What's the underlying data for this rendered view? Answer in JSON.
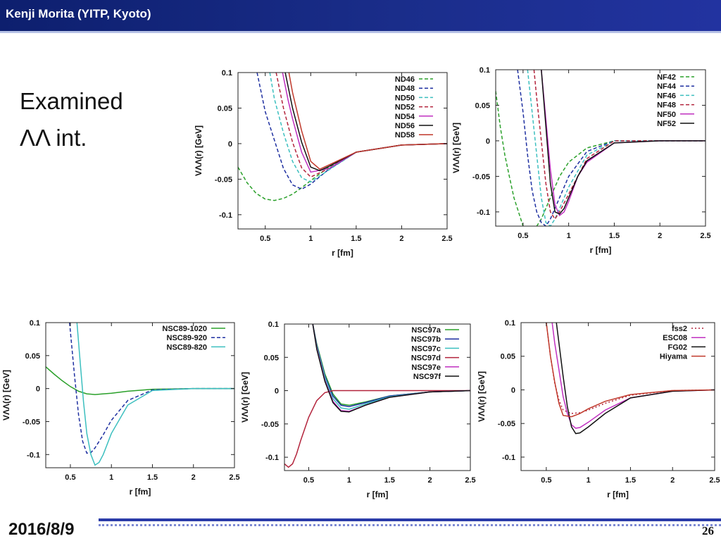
{
  "header": {
    "title": "Kenji Morita (YITP, Kyoto)"
  },
  "slide": {
    "heading_line1": "Examined",
    "heading_line2": "ΛΛ int."
  },
  "footer": {
    "date": "2016/8/9",
    "page": "26"
  },
  "chart_data": [
    {
      "type": "line",
      "xlabel": "r [fm]",
      "ylabel": "VΛΛ(r) [GeV]",
      "xlim": [
        0.2,
        2.5
      ],
      "ylim": [
        -0.12,
        0.1
      ],
      "xticks": [
        0.5,
        1,
        1.5,
        2,
        2.5
      ],
      "xtick_labels": [
        "0.5",
        "1",
        "1.5",
        "2",
        "2.5"
      ],
      "yticks": [
        0.1,
        0.05,
        0,
        -0.05,
        -0.1
      ],
      "ytick_labels": [
        "0.1",
        "0.05",
        "0",
        "-0.05",
        "-0.1"
      ],
      "legend": "top-right",
      "series": [
        {
          "name": "ND46",
          "color": "#2aa02a",
          "dash": "dash",
          "x": [
            0.2,
            0.3,
            0.4,
            0.5,
            0.6,
            0.7,
            0.8,
            0.9,
            1.0,
            1.2,
            1.5,
            2.0,
            2.5
          ],
          "y": [
            -0.033,
            -0.055,
            -0.07,
            -0.078,
            -0.08,
            -0.077,
            -0.071,
            -0.062,
            -0.052,
            -0.033,
            -0.012,
            -0.002,
            0
          ]
        },
        {
          "name": "ND48",
          "color": "#1e2fa0",
          "dash": "dash",
          "x": [
            0.41,
            0.5,
            0.6,
            0.7,
            0.8,
            0.9,
            1.0,
            1.2,
            1.5,
            2.0,
            2.5
          ],
          "y": [
            0.1,
            0.045,
            0.005,
            -0.035,
            -0.058,
            -0.064,
            -0.057,
            -0.036,
            -0.012,
            -0.002,
            0
          ]
        },
        {
          "name": "ND50",
          "color": "#3cbfbf",
          "dash": "dash",
          "x": [
            0.55,
            0.6,
            0.7,
            0.8,
            0.9,
            1.0,
            1.2,
            1.5,
            2.0,
            2.5
          ],
          "y": [
            0.1,
            0.063,
            0.015,
            -0.025,
            -0.048,
            -0.054,
            -0.037,
            -0.012,
            -0.002,
            0
          ]
        },
        {
          "name": "ND52",
          "color": "#b3243c",
          "dash": "dash",
          "x": [
            0.62,
            0.7,
            0.8,
            0.9,
            1.0,
            1.2,
            1.5,
            2.0,
            2.5
          ],
          "y": [
            0.1,
            0.05,
            0.002,
            -0.034,
            -0.047,
            -0.035,
            -0.012,
            -0.002,
            0
          ]
        },
        {
          "name": "ND54",
          "color": "#c030c0",
          "dash": "solid",
          "x": [
            0.69,
            0.75,
            0.8,
            0.9,
            1.0,
            1.2,
            1.5,
            2.0,
            2.5
          ],
          "y": [
            0.1,
            0.062,
            0.035,
            -0.012,
            -0.04,
            -0.035,
            -0.012,
            -0.002,
            0
          ]
        },
        {
          "name": "ND56",
          "color": "#111111",
          "dash": "solid",
          "x": [
            0.72,
            0.8,
            0.9,
            1.0,
            1.1,
            1.2,
            1.5,
            2.0,
            2.5
          ],
          "y": [
            0.1,
            0.05,
            0.002,
            -0.033,
            -0.038,
            -0.032,
            -0.012,
            -0.002,
            0
          ]
        },
        {
          "name": "ND58",
          "color": "#c0392b",
          "dash": "solid",
          "x": [
            0.76,
            0.8,
            0.9,
            1.0,
            1.1,
            1.2,
            1.5,
            2.0,
            2.5
          ],
          "y": [
            0.1,
            0.072,
            0.018,
            -0.025,
            -0.036,
            -0.03,
            -0.012,
            -0.002,
            0
          ]
        }
      ]
    },
    {
      "type": "line",
      "xlabel": "r [fm]",
      "ylabel": "VΛΛ(r) [GeV]",
      "xlim": [
        0.2,
        2.5
      ],
      "ylim": [
        -0.12,
        0.1
      ],
      "xticks": [
        0.5,
        1,
        1.5,
        2,
        2.5
      ],
      "xtick_labels": [
        "0.5",
        "1",
        "1.5",
        "2",
        "2.5"
      ],
      "yticks": [
        0.1,
        0.05,
        0,
        -0.05,
        -0.1
      ],
      "ytick_labels": [
        "0.1",
        "0.05",
        "0",
        "-0.05",
        "-0.1"
      ],
      "legend": "top-right",
      "series": [
        {
          "name": "NF42",
          "color": "#2aa02a",
          "dash": "dash",
          "x": [
            0.2,
            0.25,
            0.3,
            0.35,
            0.4,
            0.45,
            0.5,
            0.6,
            0.7,
            0.8,
            0.9,
            1.0,
            1.2,
            1.5,
            2.0,
            2.5
          ],
          "y": [
            0.07,
            0.02,
            -0.02,
            -0.05,
            -0.08,
            -0.1,
            -0.12,
            -0.13,
            -0.11,
            -0.08,
            -0.05,
            -0.03,
            -0.01,
            0,
            0,
            0
          ]
        },
        {
          "name": "NF44",
          "color": "#1e2fa0",
          "dash": "dash",
          "x": [
            0.44,
            0.5,
            0.55,
            0.6,
            0.65,
            0.7,
            0.75,
            0.8,
            0.9,
            1.0,
            1.2,
            1.5,
            2.0,
            2.5
          ],
          "y": [
            0.1,
            0.04,
            -0.02,
            -0.07,
            -0.1,
            -0.115,
            -0.12,
            -0.11,
            -0.08,
            -0.05,
            -0.015,
            0,
            0,
            0
          ]
        },
        {
          "name": "NF46",
          "color": "#3cbfbf",
          "dash": "dash",
          "x": [
            0.55,
            0.6,
            0.65,
            0.7,
            0.75,
            0.8,
            0.85,
            0.9,
            1.0,
            1.2,
            1.5,
            2.0,
            2.5
          ],
          "y": [
            0.1,
            0.04,
            -0.02,
            -0.08,
            -0.115,
            -0.12,
            -0.11,
            -0.095,
            -0.065,
            -0.02,
            0,
            0,
            0
          ]
        },
        {
          "name": "NF48",
          "color": "#b3243c",
          "dash": "dash",
          "x": [
            0.62,
            0.65,
            0.7,
            0.75,
            0.8,
            0.85,
            0.9,
            1.0,
            1.2,
            1.5,
            2.0,
            2.5
          ],
          "y": [
            0.1,
            0.06,
            0.0,
            -0.06,
            -0.1,
            -0.11,
            -0.1,
            -0.075,
            -0.025,
            0,
            0,
            0
          ]
        },
        {
          "name": "NF50",
          "color": "#c030c0",
          "dash": "solid",
          "x": [
            0.7,
            0.75,
            0.8,
            0.85,
            0.9,
            0.95,
            1.0,
            1.1,
            1.2,
            1.5,
            2.0,
            2.5
          ],
          "y": [
            0.1,
            0.03,
            -0.04,
            -0.09,
            -0.105,
            -0.1,
            -0.085,
            -0.05,
            -0.03,
            -0.003,
            0,
            0
          ]
        },
        {
          "name": "NF52",
          "color": "#111111",
          "dash": "solid",
          "x": [
            0.7,
            0.75,
            0.8,
            0.85,
            0.9,
            0.95,
            1.0,
            1.1,
            1.2,
            1.5,
            2.0,
            2.5
          ],
          "y": [
            0.1,
            0.02,
            -0.06,
            -0.1,
            -0.103,
            -0.095,
            -0.08,
            -0.05,
            -0.028,
            -0.003,
            0,
            0
          ]
        }
      ]
    },
    {
      "type": "line",
      "xlabel": "r [fm]",
      "ylabel": "VΛΛ(r) [GeV]",
      "xlim": [
        0.2,
        2.5
      ],
      "ylim": [
        -0.12,
        0.1
      ],
      "xticks": [
        0.5,
        1,
        1.5,
        2,
        2.5
      ],
      "xtick_labels": [
        "0.5",
        "1",
        "1.5",
        "2",
        "2.5"
      ],
      "yticks": [
        0.1,
        0.05,
        0,
        -0.05,
        -0.1
      ],
      "ytick_labels": [
        "0.1",
        "0.05",
        "0",
        "-0.05",
        "-0.1"
      ],
      "legend": "top-right",
      "series": [
        {
          "name": "NSC89-1020",
          "color": "#2aa02a",
          "dash": "solid",
          "x": [
            0.2,
            0.3,
            0.4,
            0.5,
            0.6,
            0.7,
            0.8,
            0.9,
            1.0,
            1.2,
            1.5,
            2.0,
            2.5
          ],
          "y": [
            0.033,
            0.022,
            0.012,
            0.003,
            -0.004,
            -0.008,
            -0.009,
            -0.008,
            -0.007,
            -0.004,
            -0.001,
            0,
            0
          ]
        },
        {
          "name": "NSC89-920",
          "color": "#1e2fa0",
          "dash": "dash",
          "x": [
            0.49,
            0.55,
            0.6,
            0.65,
            0.7,
            0.75,
            0.8,
            0.9,
            1.0,
            1.2,
            1.5,
            2.0,
            2.5
          ],
          "y": [
            0.1,
            0.02,
            -0.04,
            -0.08,
            -0.098,
            -0.097,
            -0.09,
            -0.07,
            -0.048,
            -0.018,
            -0.002,
            0,
            0
          ]
        },
        {
          "name": "NSC89-820",
          "color": "#3cbfbf",
          "dash": "solid",
          "x": [
            0.58,
            0.62,
            0.66,
            0.7,
            0.75,
            0.8,
            0.85,
            0.9,
            1.0,
            1.2,
            1.5,
            2.0,
            2.5
          ],
          "y": [
            0.1,
            0.04,
            -0.02,
            -0.068,
            -0.1,
            -0.116,
            -0.112,
            -0.1,
            -0.068,
            -0.025,
            -0.003,
            0,
            0
          ]
        }
      ]
    },
    {
      "type": "line",
      "xlabel": "r [fm]",
      "ylabel": "VΛΛ(r) [GeV]",
      "xlim": [
        0.2,
        2.5
      ],
      "ylim": [
        -0.12,
        0.1
      ],
      "xticks": [
        0.5,
        1,
        1.5,
        2,
        2.5
      ],
      "xtick_labels": [
        "0.5",
        "1",
        "1.5",
        "2",
        "2.5"
      ],
      "yticks": [
        0.1,
        0.05,
        0,
        -0.05,
        -0.1
      ],
      "ytick_labels": [
        "0.1",
        "0.05",
        "0",
        "-0.05",
        "-0.1"
      ],
      "legend": "top-right",
      "series": [
        {
          "name": "NSC97a",
          "color": "#2aa02a",
          "dash": "solid",
          "x": [
            0.55,
            0.6,
            0.7,
            0.8,
            0.9,
            1.0,
            1.2,
            1.5,
            2.0,
            2.5
          ],
          "y": [
            0.1,
            0.07,
            0.025,
            -0.005,
            -0.02,
            -0.022,
            -0.017,
            -0.008,
            -0.002,
            0
          ]
        },
        {
          "name": "NSC97b",
          "color": "#1e2fa0",
          "dash": "solid",
          "x": [
            0.55,
            0.6,
            0.7,
            0.8,
            0.9,
            1.0,
            1.2,
            1.5,
            2.0,
            2.5
          ],
          "y": [
            0.1,
            0.068,
            0.022,
            -0.008,
            -0.022,
            -0.024,
            -0.018,
            -0.008,
            -0.002,
            0
          ]
        },
        {
          "name": "NSC97c",
          "color": "#3cbfbf",
          "dash": "solid",
          "x": [
            0.55,
            0.6,
            0.7,
            0.8,
            0.9,
            1.0,
            1.2,
            1.5,
            2.0,
            2.5
          ],
          "y": [
            0.1,
            0.066,
            0.02,
            -0.012,
            -0.026,
            -0.028,
            -0.02,
            -0.009,
            -0.002,
            0
          ]
        },
        {
          "name": "NSC97d",
          "color": "#b3243c",
          "dash": "solid",
          "x": [
            0.2,
            0.25,
            0.3,
            0.35,
            0.4,
            0.5,
            0.6,
            0.7,
            0.8,
            1.0,
            1.5,
            2.5
          ],
          "y": [
            -0.11,
            -0.115,
            -0.11,
            -0.095,
            -0.075,
            -0.04,
            -0.015,
            -0.003,
            0.0,
            0,
            0,
            0
          ]
        },
        {
          "name": "NSC97e",
          "color": "#c030c0",
          "dash": "solid",
          "x": [
            0.55,
            0.6,
            0.7,
            0.8,
            0.9,
            1.0,
            1.2,
            1.5,
            2.0,
            2.5
          ],
          "y": [
            0.1,
            0.064,
            0.016,
            -0.016,
            -0.03,
            -0.031,
            -0.022,
            -0.01,
            -0.002,
            0
          ]
        },
        {
          "name": "NSC97f",
          "color": "#111111",
          "dash": "solid",
          "x": [
            0.55,
            0.6,
            0.7,
            0.8,
            0.9,
            1.0,
            1.2,
            1.5,
            2.0,
            2.5
          ],
          "y": [
            0.1,
            0.062,
            0.014,
            -0.018,
            -0.031,
            -0.032,
            -0.022,
            -0.01,
            -0.002,
            0
          ]
        }
      ]
    },
    {
      "type": "line",
      "xlabel": "r [fm]",
      "ylabel": "VΛΛ(r) [GeV]",
      "xlim": [
        0.2,
        2.5
      ],
      "ylim": [
        -0.12,
        0.1
      ],
      "xticks": [
        0.5,
        1,
        1.5,
        2,
        2.5
      ],
      "xtick_labels": [
        "0.5",
        "1",
        "1.5",
        "2",
        "2.5"
      ],
      "yticks": [
        0.1,
        0.05,
        0,
        -0.05,
        -0.1
      ],
      "ytick_labels": [
        "0.1",
        "0.05",
        "0",
        "-0.05",
        "-0.1"
      ],
      "legend": "top-right",
      "series": [
        {
          "name": "fss2",
          "color": "#b3243c",
          "dash": "dot",
          "x": [
            0.5,
            0.55,
            0.6,
            0.65,
            0.7,
            0.8,
            0.9,
            1.0,
            1.2,
            1.5,
            2.0,
            2.5
          ],
          "y": [
            0.1,
            0.05,
            0.01,
            -0.015,
            -0.03,
            -0.035,
            -0.034,
            -0.03,
            -0.02,
            -0.008,
            -0.001,
            0
          ]
        },
        {
          "name": "ESC08",
          "color": "#c030c0",
          "dash": "solid",
          "x": [
            0.57,
            0.6,
            0.65,
            0.7,
            0.75,
            0.8,
            0.85,
            0.9,
            1.0,
            1.2,
            1.5,
            2.0,
            2.5
          ],
          "y": [
            0.1,
            0.07,
            0.03,
            -0.01,
            -0.035,
            -0.052,
            -0.057,
            -0.056,
            -0.048,
            -0.03,
            -0.012,
            -0.002,
            0
          ]
        },
        {
          "name": "FG02",
          "color": "#111111",
          "dash": "solid",
          "x": [
            0.62,
            0.65,
            0.7,
            0.75,
            0.8,
            0.85,
            0.9,
            1.0,
            1.2,
            1.5,
            2.0,
            2.5
          ],
          "y": [
            0.1,
            0.07,
            0.02,
            -0.025,
            -0.055,
            -0.065,
            -0.064,
            -0.055,
            -0.035,
            -0.012,
            -0.002,
            0
          ]
        },
        {
          "name": "Hiyama",
          "color": "#c0392b",
          "dash": "solid",
          "x": [
            0.5,
            0.55,
            0.6,
            0.65,
            0.7,
            0.8,
            0.9,
            1.0,
            1.2,
            1.5,
            2.0,
            2.5
          ],
          "y": [
            0.1,
            0.05,
            0.012,
            -0.02,
            -0.038,
            -0.04,
            -0.035,
            -0.028,
            -0.017,
            -0.007,
            -0.001,
            0
          ]
        }
      ]
    }
  ]
}
